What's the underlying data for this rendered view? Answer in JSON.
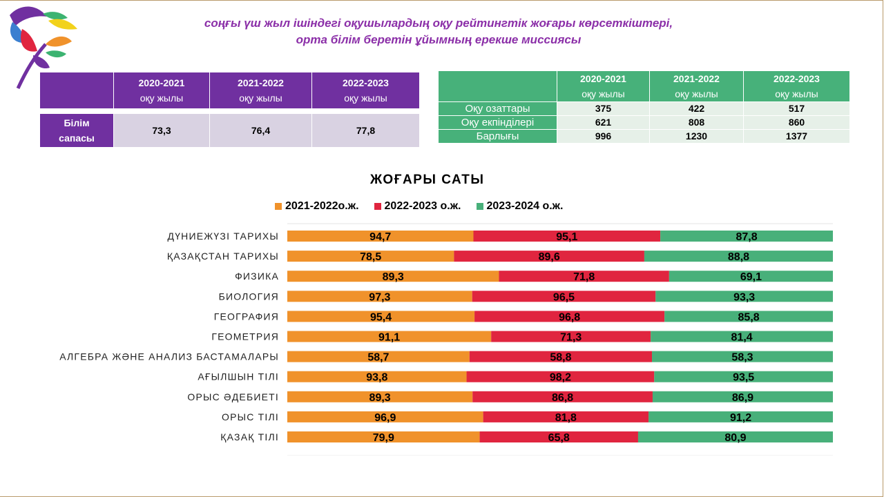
{
  "title": {
    "line1": "соңғы үш жыл ішіндегі оқушылардың оқу рейтингтік жоғары көрсеткіштері,",
    "line2": "орта білім беретін ұйымның ерекше миссиясы"
  },
  "quality_table": {
    "headers": [
      {
        "year": "2020-2021",
        "unit": "оқу жылы"
      },
      {
        "year": "2021-2022",
        "unit": "оқу жылы"
      },
      {
        "year": "2022-2023",
        "unit": "оқу жылы"
      }
    ],
    "row_label_line1": "Білім",
    "row_label_line2": "сапасы",
    "values": [
      "73,3",
      "76,4",
      "77,8"
    ]
  },
  "students_table": {
    "headers": [
      {
        "year": "2020-2021",
        "unit": "оқу жылы"
      },
      {
        "year": "2021-2022",
        "unit": "оқу жылы"
      },
      {
        "year": "2022-2023",
        "unit": "оқу жылы"
      }
    ],
    "rows": [
      {
        "label": "Оқу озаттары",
        "values": [
          "375",
          "422",
          "517"
        ]
      },
      {
        "label": "Оқу екпінділері",
        "values": [
          "621",
          "808",
          "860"
        ]
      },
      {
        "label": "Барлығы",
        "values": [
          "996",
          "1230",
          "1377"
        ]
      }
    ]
  },
  "colors": {
    "purple": "#7030a0",
    "green": "#47b17a",
    "orange": "#f0922b",
    "red": "#e0253f",
    "series_green": "#48b07a"
  },
  "chart_data": {
    "type": "bar",
    "stacked": true,
    "orientation": "horizontal",
    "title": "ЖОҒАРЫ САТЫ",
    "legend_position": "top",
    "categories": [
      "ДҮНИЕЖҮЗІ ТАРИХЫ",
      "ҚАЗАҚСТАН ТАРИХЫ",
      "ФИЗИКА",
      "БИОЛОГИЯ",
      "ГЕОГРАФИЯ",
      "ГЕОМЕТРИЯ",
      "АЛГЕБРА ЖӘНЕ АНАЛИЗ БАСТАМАЛАРЫ",
      "АҒЫЛШЫН ТІЛІ",
      "ОРЫС ӘДЕБИЕТІ",
      "ОРЫС ТІЛІ",
      "ҚАЗАҚ ТІЛІ"
    ],
    "series": [
      {
        "name": "2021-2022о.ж.",
        "color": "#f0922b",
        "values": [
          94.7,
          78.5,
          89.3,
          97.3,
          95.4,
          91.1,
          58.7,
          93.8,
          89.3,
          96.9,
          79.9
        ],
        "labels": [
          "94,7",
          "78,5",
          "89,3",
          "97,3",
          "95,4",
          "91,1",
          "58,7",
          "93,8",
          "89,3",
          "96,9",
          "79,9"
        ]
      },
      {
        "name": "2022-2023 о.ж.",
        "color": "#e0253f",
        "values": [
          95.1,
          89.6,
          71.8,
          96.5,
          96.8,
          71.3,
          58.8,
          98.2,
          86.8,
          81.8,
          65.8
        ],
        "labels": [
          "95,1",
          "89,6",
          "71,8",
          "96,5",
          "96,8",
          "71,3",
          "58,8",
          "98,2",
          "86,8",
          "81,8",
          "65,8"
        ]
      },
      {
        "name": "2023-2024 о.ж.",
        "color": "#48b07a",
        "values": [
          87.8,
          88.8,
          69.1,
          93.3,
          85.8,
          81.4,
          58.3,
          93.5,
          86.9,
          91.2,
          80.9
        ],
        "labels": [
          "87,8",
          "88,8",
          "69,1",
          "93,3",
          "85,8",
          "81,4",
          "58,3",
          "93,5",
          "86,9",
          "91,2",
          "80,9"
        ]
      }
    ],
    "normalized_100_percent": true
  }
}
